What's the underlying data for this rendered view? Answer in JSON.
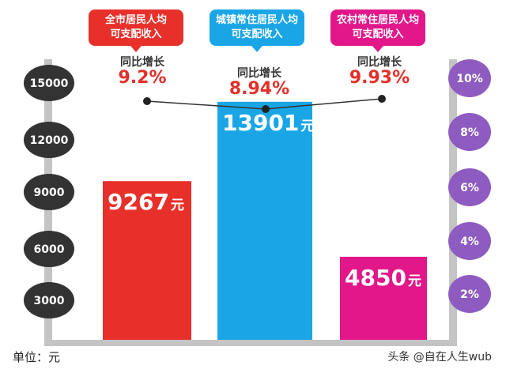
{
  "chart_data": {
    "type": "bar",
    "categories_line1": [
      "全市居民人均",
      "城镇常住居民人均",
      "农村常住居民人均"
    ],
    "categories_line2": [
      "可支配收入",
      "可支配收入",
      "可支配收入"
    ],
    "category_colors": [
      "#e8302b",
      "#1aa6e6",
      "#e2178a"
    ],
    "values": [
      9267,
      13901,
      4850
    ],
    "value_labels": [
      "9267",
      "13901",
      "4850"
    ],
    "value_unit": "元",
    "growth_title": "同比增长",
    "growth_rates": [
      9.2,
      8.94,
      9.93
    ],
    "growth_labels": [
      "9.2%",
      "8.94%",
      "9.93%"
    ],
    "left_axis_ticks": [
      3000,
      6000,
      9000,
      12000,
      15000
    ],
    "right_axis_ticks": [
      "2%",
      "4%",
      "6%",
      "8%",
      "10%"
    ],
    "ylim": [
      0,
      15000
    ],
    "unit_label": "单位：元"
  },
  "footer": {
    "source": "头条 @自在人生wub"
  },
  "colors": {
    "left_axis_circle": "#333333",
    "right_axis_circle": "#8e5cc0",
    "axis_bar": "#c4c4c4"
  }
}
